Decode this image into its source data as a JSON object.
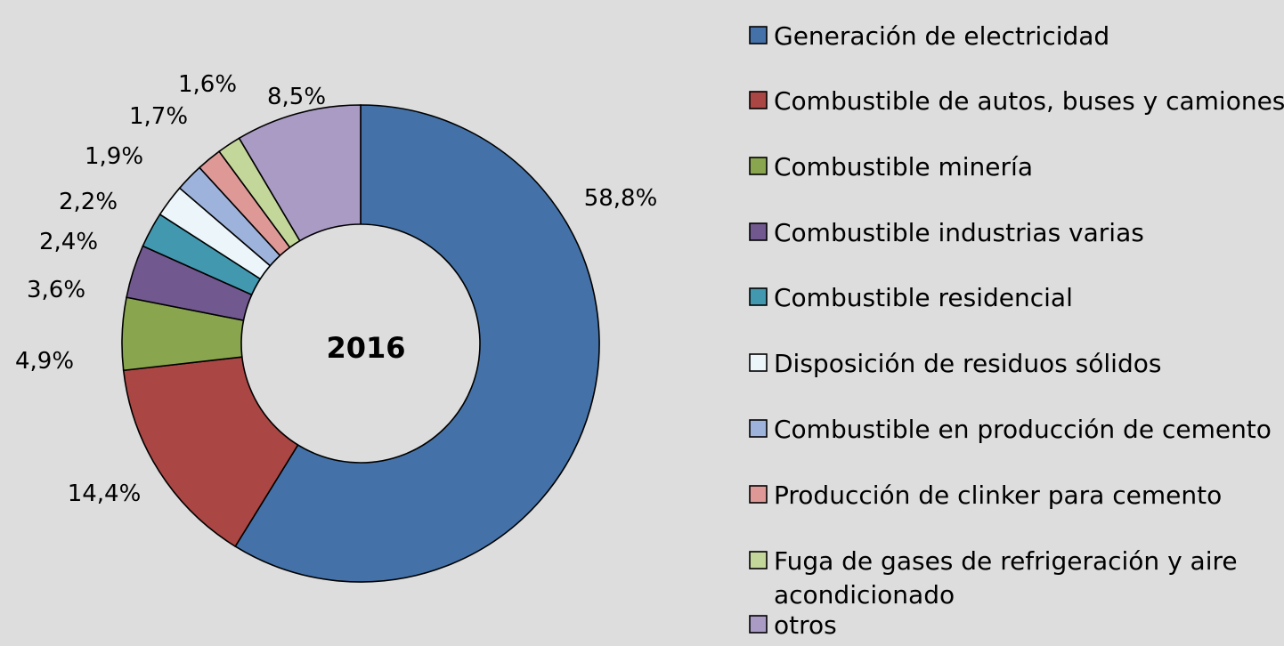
{
  "chart_data": {
    "type": "pie",
    "subtype": "donut",
    "center_label": "2016",
    "legend_position": "right",
    "slices": [
      {
        "label": "Generación de electricidad",
        "value": 58.8,
        "display": "58,8%",
        "color": "#4472a8"
      },
      {
        "label": "Combustible de autos, buses y camiones",
        "value": 14.4,
        "display": "14,4%",
        "color": "#aa4643"
      },
      {
        "label": "Combustible minería",
        "value": 4.9,
        "display": "4,9%",
        "color": "#89a54e"
      },
      {
        "label": "Combustible industrias varias",
        "value": 3.6,
        "display": "3,6%",
        "color": "#71588f"
      },
      {
        "label": "Combustible residencial",
        "value": 2.4,
        "display": "2,4%",
        "color": "#4198af"
      },
      {
        "label": "Disposición de residuos sólidos",
        "value": 2.2,
        "display": "2,2%",
        "color": "#ebf5fa"
      },
      {
        "label": "Combustible en producción de cemento",
        "value": 1.9,
        "display": "1,9%",
        "color": "#9eb3dc"
      },
      {
        "label": "Producción de clinker para cemento",
        "value": 1.7,
        "display": "1,7%",
        "color": "#de9997"
      },
      {
        "label": "Fuga de gases de refrigeración y aire acondicionado",
        "label_lines": [
          "Fuga de gases de refrigeración y aire",
          "acondicionado"
        ],
        "value": 1.6,
        "display": "1,6%",
        "color": "#c4d79b"
      },
      {
        "label": "otros",
        "value": 8.5,
        "display": "8,5%",
        "color": "#aa9bc5"
      }
    ]
  }
}
